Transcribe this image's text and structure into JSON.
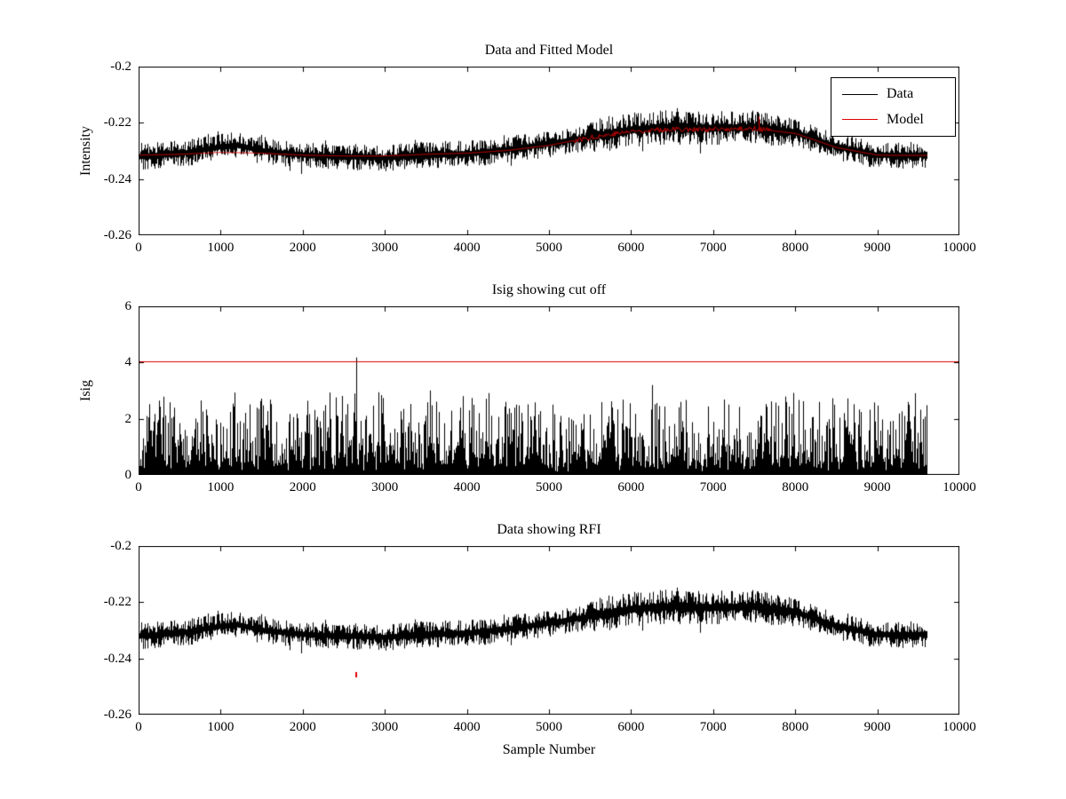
{
  "figure": {
    "background": "#ffffff",
    "axis_color": "#000000",
    "text_color": "#000000",
    "accent_red": "#e00000"
  },
  "chart_data": [
    {
      "type": "line",
      "title": "Data and Fitted Model",
      "xlabel": "",
      "ylabel": "Intensity",
      "xlim": [
        0,
        10000
      ],
      "ylim": [
        -0.26,
        -0.2
      ],
      "x_data_end": 9600,
      "grid": false,
      "xticks": [
        0,
        1000,
        2000,
        3000,
        4000,
        5000,
        6000,
        7000,
        8000,
        9000,
        10000
      ],
      "xtick_labels": [
        "0",
        "1000",
        "2000",
        "3000",
        "4000",
        "5000",
        "6000",
        "7000",
        "8000",
        "9000",
        "10000"
      ],
      "yticks": [
        -0.26,
        -0.24,
        -0.22,
        -0.2
      ],
      "ytick_labels": [
        "-0.26",
        "-0.24",
        "-0.22",
        "-0.2"
      ],
      "legend": {
        "position": "northeast",
        "entries": [
          {
            "label": "Data",
            "color": "#000000"
          },
          {
            "label": "Model",
            "color": "#e00000"
          }
        ]
      },
      "series": [
        {
          "name": "Data",
          "color": "#000000",
          "render": "noisy-band",
          "noise_amp": 0.0048,
          "noise_boost": {
            "xmin": 5500,
            "xmax": 8000,
            "factor": 1.3
          },
          "trend": {
            "x": [
              0,
              500,
              1000,
              1200,
              1500,
              2000,
              2500,
              3000,
              3500,
              4000,
              4500,
              5000,
              5500,
              6000,
              6500,
              7000,
              7500,
              8000,
              8500,
              9000,
              9600
            ],
            "y": [
              -0.232,
              -0.231,
              -0.2285,
              -0.228,
              -0.23,
              -0.2315,
              -0.232,
              -0.2325,
              -0.2315,
              -0.231,
              -0.2295,
              -0.2275,
              -0.225,
              -0.2225,
              -0.2215,
              -0.222,
              -0.2215,
              -0.2235,
              -0.2285,
              -0.2315,
              -0.2315
            ]
          }
        },
        {
          "name": "Model",
          "color": "#e00000",
          "render": "line",
          "trend": {
            "x": [
              0,
              500,
              1000,
              1500,
              2000,
              2500,
              3000,
              3500,
              4000,
              4500,
              5000,
              5500,
              6000,
              6500,
              7000,
              7500,
              8000,
              8500,
              9000,
              9600
            ],
            "y": [
              -0.2315,
              -0.2312,
              -0.2305,
              -0.2308,
              -0.2315,
              -0.2318,
              -0.2318,
              -0.2312,
              -0.2308,
              -0.2298,
              -0.228,
              -0.2252,
              -0.223,
              -0.2222,
              -0.2225,
              -0.222,
              -0.2238,
              -0.2288,
              -0.2315,
              -0.2316
            ]
          },
          "jitter": {
            "xmin": 5300,
            "xmax": 7700,
            "amp": 0.0018
          },
          "spike": {
            "x": 7550,
            "dy": 0.0045
          }
        }
      ]
    },
    {
      "type": "line",
      "title": "Isig showing cut off",
      "xlabel": "",
      "ylabel": "Isig",
      "xlim": [
        0,
        10000
      ],
      "ylim": [
        0,
        6
      ],
      "x_data_end": 9600,
      "grid": false,
      "xticks": [
        0,
        1000,
        2000,
        3000,
        4000,
        5000,
        6000,
        7000,
        8000,
        9000,
        10000
      ],
      "xtick_labels": [
        "0",
        "1000",
        "2000",
        "3000",
        "4000",
        "5000",
        "6000",
        "7000",
        "8000",
        "9000",
        "10000"
      ],
      "yticks": [
        0,
        2,
        4,
        6
      ],
      "ytick_labels": [
        "0",
        "2",
        "4",
        "6"
      ],
      "cutoff_line": {
        "y": 4.05,
        "color": "#e00000"
      },
      "series": [
        {
          "name": "Isig",
          "color": "#000000",
          "render": "spikes",
          "typical_range": [
            0,
            2.8
          ],
          "spike_max": 3.9,
          "outlier": {
            "x": 2650,
            "y": 4.18
          }
        }
      ]
    },
    {
      "type": "line",
      "title": "Data showing RFI",
      "xlabel": "Sample Number",
      "ylabel": "",
      "xlim": [
        0,
        10000
      ],
      "ylim": [
        -0.26,
        -0.2
      ],
      "x_data_end": 9600,
      "grid": false,
      "xticks": [
        0,
        1000,
        2000,
        3000,
        4000,
        5000,
        6000,
        7000,
        8000,
        9000,
        10000
      ],
      "xtick_labels": [
        "0",
        "1000",
        "2000",
        "3000",
        "4000",
        "5000",
        "6000",
        "7000",
        "8000",
        "9000",
        "10000"
      ],
      "yticks": [
        -0.26,
        -0.24,
        -0.22,
        -0.2
      ],
      "ytick_labels": [
        "-0.26",
        "-0.24",
        "-0.22",
        "-0.2"
      ],
      "rfi_marker": {
        "x": 2650,
        "y": -0.246,
        "color": "#e00000"
      },
      "series": [
        {
          "name": "Data",
          "color": "#000000",
          "render": "noisy-band",
          "noise_amp": 0.0048,
          "noise_boost": {
            "xmin": 5500,
            "xmax": 8000,
            "factor": 1.3
          },
          "trend": {
            "x": [
              0,
              500,
              1000,
              1200,
              1500,
              2000,
              2500,
              3000,
              3500,
              4000,
              4500,
              5000,
              5500,
              6000,
              6500,
              7000,
              7500,
              8000,
              8500,
              9000,
              9600
            ],
            "y": [
              -0.232,
              -0.231,
              -0.2285,
              -0.228,
              -0.23,
              -0.2315,
              -0.232,
              -0.2325,
              -0.2315,
              -0.231,
              -0.2295,
              -0.2275,
              -0.225,
              -0.2225,
              -0.2215,
              -0.222,
              -0.2215,
              -0.2235,
              -0.2285,
              -0.2315,
              -0.2315
            ]
          }
        }
      ]
    }
  ]
}
